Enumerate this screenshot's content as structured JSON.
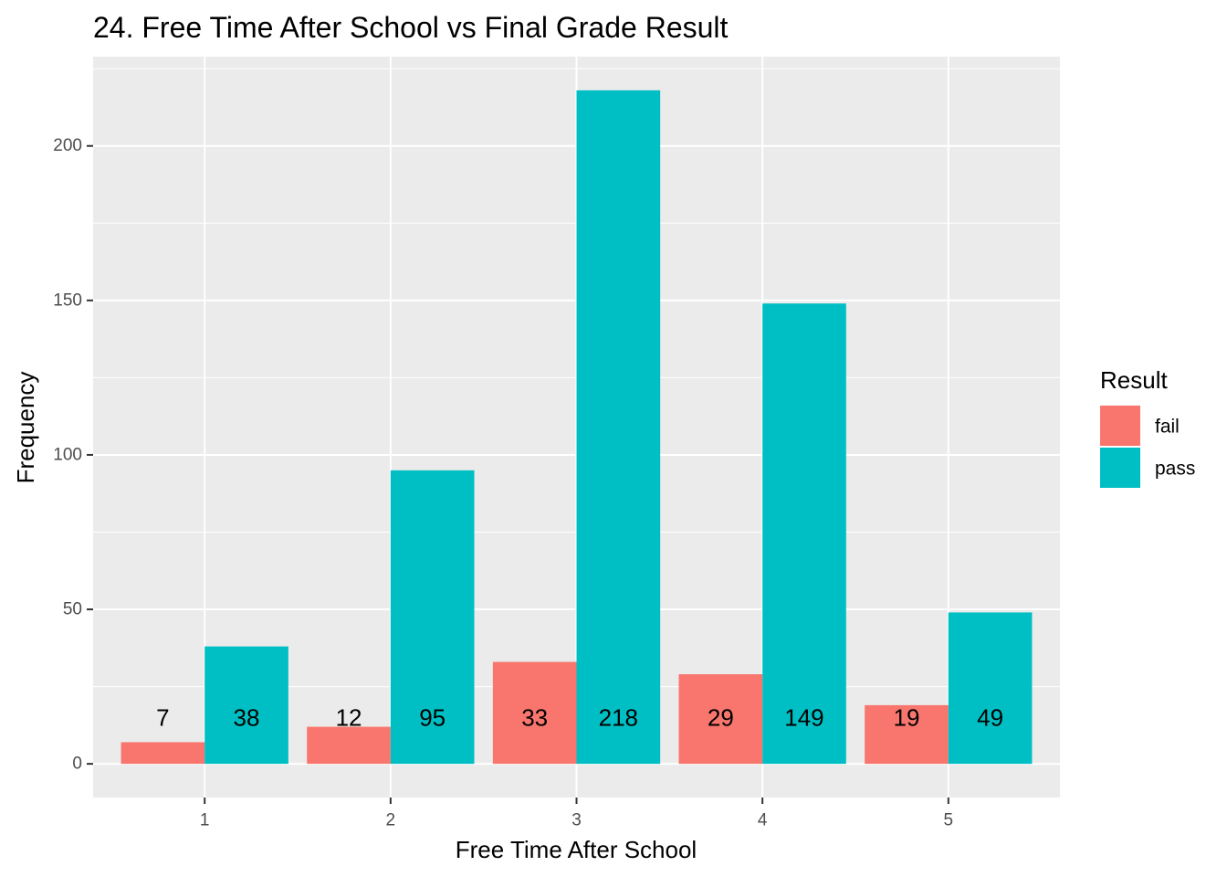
{
  "chart_data": {
    "type": "bar",
    "title": "24. Free Time After School vs Final Grade Result",
    "xlabel": "Free Time After School",
    "ylabel": "Frequency",
    "categories": [
      "1",
      "2",
      "3",
      "4",
      "5"
    ],
    "series": [
      {
        "name": "fail",
        "values": [
          7,
          12,
          33,
          29,
          19
        ],
        "color": "#f8766d"
      },
      {
        "name": "pass",
        "values": [
          38,
          95,
          218,
          149,
          49
        ],
        "color": "#00bfc4"
      }
    ],
    "ylim": [
      -10.9,
      228.9
    ],
    "yticks": [
      0,
      50,
      100,
      150,
      200
    ],
    "grid": true,
    "panel_background": "#ebebeb",
    "legend": {
      "title": "Result",
      "placement": "right"
    }
  }
}
